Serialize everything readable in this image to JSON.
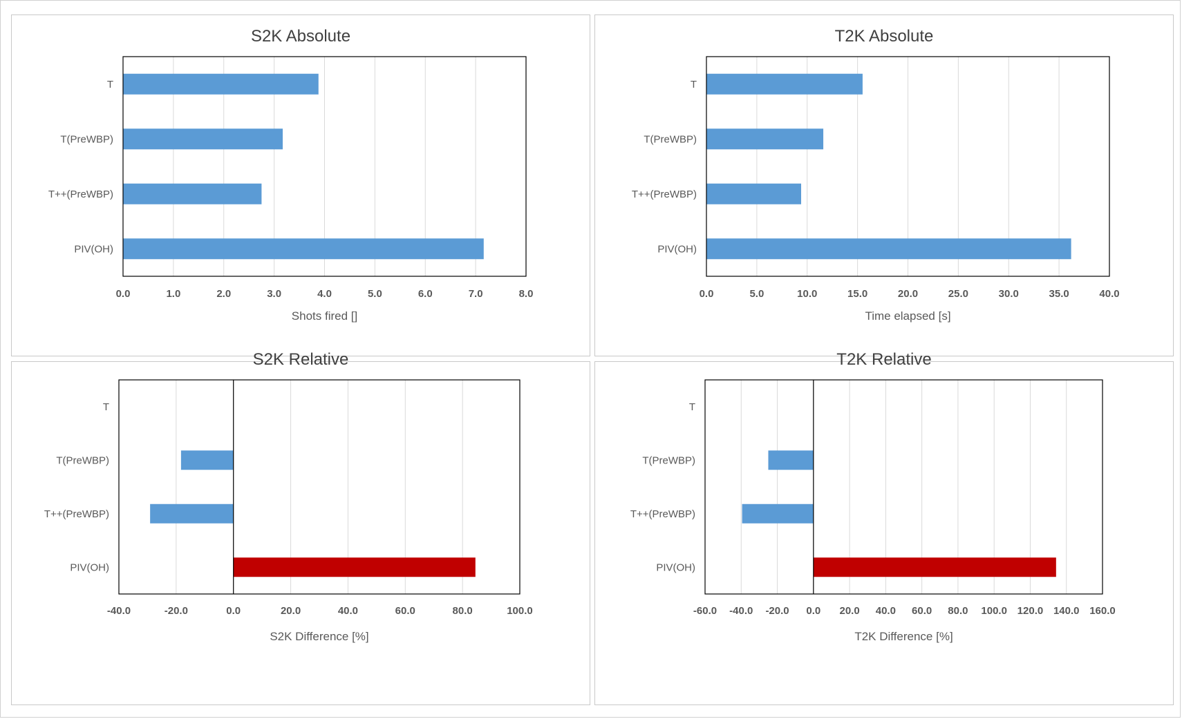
{
  "colors": {
    "bar": "#5b9bd5",
    "highlight": "#c00000",
    "grid": "#d9d9d9",
    "axis": "#000000",
    "text": "#404040",
    "tick_text": "#595959"
  },
  "chart_data": [
    {
      "type": "bar",
      "orientation": "horizontal",
      "title": "S2K Absolute",
      "xlabel": "Shots fired []",
      "ylabel": "",
      "categories": [
        "T",
        "T(PreWBP)",
        "T++(PreWBP)",
        "PIV(OH)"
      ],
      "values": [
        3.88,
        3.17,
        2.75,
        7.16
      ],
      "xlim": [
        0,
        8
      ],
      "xticks": [
        "0.0",
        "1.0",
        "2.0",
        "3.0",
        "4.0",
        "5.0",
        "6.0",
        "7.0",
        "8.0"
      ],
      "grid": true,
      "highlight_index": null
    },
    {
      "type": "bar",
      "orientation": "horizontal",
      "title": "T2K Absolute",
      "xlabel": "Time elapsed [s]",
      "ylabel": "",
      "categories": [
        "T",
        "T(PreWBP)",
        "T++(PreWBP)",
        "PIV(OH)"
      ],
      "values": [
        15.5,
        11.6,
        9.4,
        36.2
      ],
      "xlim": [
        0,
        40
      ],
      "xticks": [
        "0.0",
        "5.0",
        "10.0",
        "15.0",
        "20.0",
        "25.0",
        "30.0",
        "35.0",
        "40.0"
      ],
      "grid": true,
      "highlight_index": null
    },
    {
      "type": "bar",
      "orientation": "horizontal",
      "title": "S2K Relative",
      "xlabel": "S2K Difference [%]",
      "ylabel": "",
      "categories": [
        "T",
        "T(PreWBP)",
        "T++(PreWBP)",
        "PIV(OH)"
      ],
      "values": [
        0,
        -18.3,
        -29.1,
        84.5
      ],
      "xlim": [
        -40,
        100
      ],
      "xticks": [
        "-40.0",
        "-20.0",
        "0.0",
        "20.0",
        "40.0",
        "60.0",
        "80.0",
        "100.0"
      ],
      "grid": true,
      "highlight_index": 3
    },
    {
      "type": "bar",
      "orientation": "horizontal",
      "title": "T2K Relative",
      "xlabel": "T2K Difference [%]",
      "ylabel": "",
      "categories": [
        "T",
        "T(PreWBP)",
        "T++(PreWBP)",
        "PIV(OH)"
      ],
      "values": [
        0,
        -25,
        -39.5,
        134.3
      ],
      "xlim": [
        -60,
        160
      ],
      "xticks": [
        "-60.0",
        "-40.0",
        "-20.0",
        "0.0",
        "20.0",
        "40.0",
        "60.0",
        "80.0",
        "100.0",
        "120.0",
        "140.0",
        "160.0"
      ],
      "grid": true,
      "highlight_index": 3
    }
  ]
}
